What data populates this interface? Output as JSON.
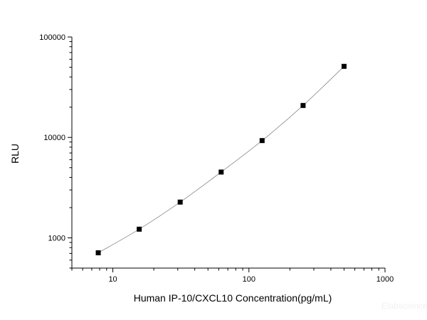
{
  "chart_data": {
    "type": "scatter",
    "title": "",
    "xlabel": "Human  IP-10/CXCL10 Concentration(pg/mL)",
    "ylabel": "RLU",
    "xscale": "log",
    "yscale": "log",
    "xlim": [
      5,
      1000
    ],
    "ylim": [
      500,
      100000
    ],
    "x_ticks": [
      10,
      100,
      1000
    ],
    "x_tick_labels": [
      "10",
      "100",
      "1000"
    ],
    "y_ticks": [
      1000,
      10000,
      100000
    ],
    "y_tick_labels": [
      "1000",
      "10000",
      "100000"
    ],
    "grid": false,
    "fit_line": true,
    "marker": "square",
    "marker_color": "#000000",
    "line_color": "#888888",
    "series": [
      {
        "x": [
          7.8125,
          15.625,
          31.25,
          62.5,
          125,
          250,
          500
        ],
        "y": [
          710,
          1220,
          2270,
          4520,
          9300,
          20800,
          51000
        ]
      }
    ]
  },
  "watermark": "Elabscience"
}
